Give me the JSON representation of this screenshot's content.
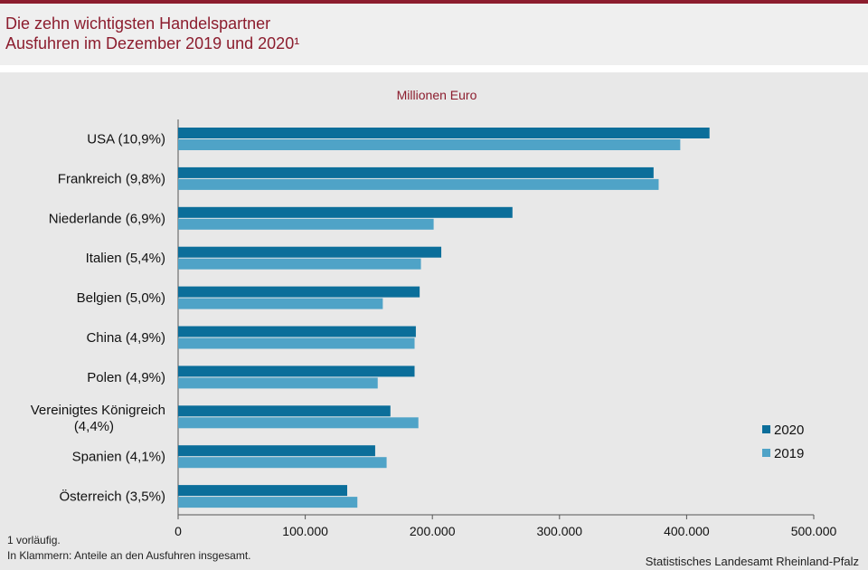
{
  "header": {
    "title_line1": "Die zehn wichtigsten Handelspartner",
    "title_line2": "Ausfuhren im Dezember 2019 und 2020¹"
  },
  "colors": {
    "accent": "#8c1d2e",
    "series_2020": "#0b6e9a",
    "series_2019": "#4fa3c7"
  },
  "chart_data": {
    "type": "bar",
    "orientation": "horizontal",
    "unit_label": "Millionen Euro",
    "categories": [
      "USA (10,9%)",
      "Frankreich (9,8%)",
      "Niederlande (6,9%)",
      "Italien (5,4%)",
      "Belgien (5,0%)",
      "China (4,9%)",
      "Polen (4,9%)",
      "Vereinigtes Königreich (4,4%)",
      "Spanien (4,1%)",
      "Österreich (3,5%)"
    ],
    "series": [
      {
        "name": "2020",
        "values": [
          418000,
          374000,
          263000,
          207000,
          190000,
          187000,
          186000,
          167000,
          155000,
          133000
        ]
      },
      {
        "name": "2019",
        "values": [
          395000,
          378000,
          201000,
          191000,
          161000,
          186000,
          157000,
          189000,
          164000,
          141000
        ]
      }
    ],
    "xlim": [
      0,
      500000
    ],
    "xticks": [
      "0",
      "100.000",
      "200.000",
      "300.000",
      "400.000",
      "500.000"
    ],
    "legend_position": "right",
    "grid": false
  },
  "footnotes": {
    "note1": "1 vorläufig.",
    "note2": "In Klammern: Anteile an den Ausfuhren insgesamt."
  },
  "source": "Statistisches Landesamt Rheinland-Pfalz"
}
